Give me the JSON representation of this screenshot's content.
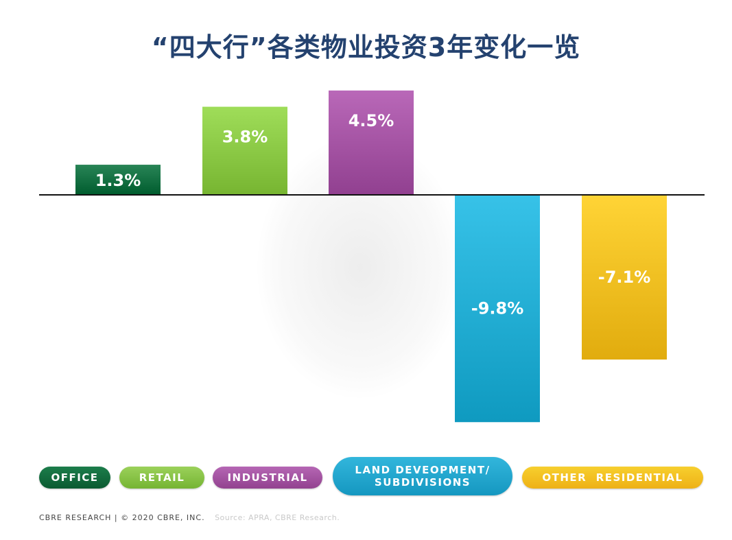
{
  "title": "“四大行”各类物业投资3年变化一览",
  "chart_data": {
    "type": "bar",
    "title": "“四大行”各类物业投资3年变化一览",
    "categories": [
      "OFFICE",
      "RETAIL",
      "INDUSTRIAL",
      "LAND DEVEOPMENT/ SUBDIVISIONS",
      "OTHER RESIDENTIAL"
    ],
    "values": [
      1.3,
      3.8,
      4.5,
      -9.8,
      -7.1
    ],
    "value_labels": [
      "1.3%",
      "3.8%",
      "4.5%",
      "-9.8%",
      "-7.1%"
    ],
    "colors": [
      "#0f6b3d",
      "#86c440",
      "#a04f9f",
      "#1ea9cf",
      "#f0bb1d"
    ],
    "ylim": [
      -10,
      5
    ],
    "grid": false,
    "legend_position": "bottom"
  },
  "legend": {
    "office": "OFFICE",
    "retail": "RETAIL",
    "industrial": "INDUSTRIAL",
    "land_line1": "LAND DEVEOPMENT/",
    "land_line2": "SUBDIVISIONS",
    "other_residential": "OTHER  RESIDENTIAL"
  },
  "footer": {
    "copyright": "CBRE RESEARCH | © 2020 CBRE, INC.",
    "source": "Source: APRA, CBRE Research."
  }
}
